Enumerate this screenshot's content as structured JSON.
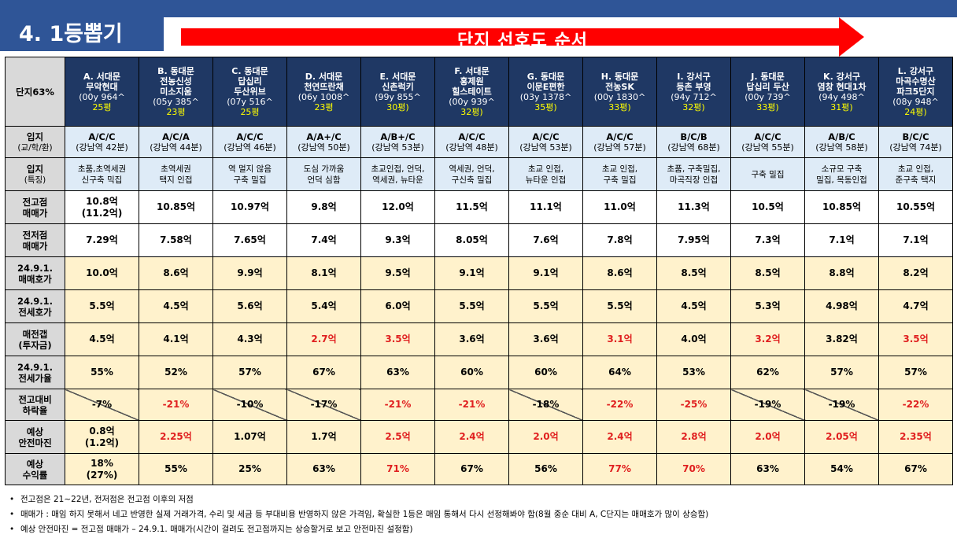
{
  "title": "4. 1등뽑기",
  "banner": "단지 선호도 순서",
  "corner": "단지63%",
  "columns": [
    {
      "name": [
        "A. 서대문",
        "무악현대"
      ],
      "year": "(00y 964^",
      "size": "25평",
      "row": {
        "loc_grade": "A/C/C",
        "loc_dist": "(강남역 42분)",
        "feature": [
          "초품,초역세권",
          "신구축 믹집"
        ],
        "high": [
          "10.8억",
          "(11.2억)"
        ],
        "prev_low": "7.29억",
        "ask": "10.0억",
        "jeonse": "5.5억",
        "gap": "4.5억",
        "ratio": "55%",
        "drop": "-7%",
        "margin": [
          "0.8억",
          "(1.2억)"
        ],
        "yield": [
          "18%",
          "(27%)"
        ]
      }
    },
    {
      "name": [
        "B. 동대문",
        "전농신성",
        "미소지움"
      ],
      "year": "(05y 385^",
      "size": "23평",
      "row": {
        "loc_grade": "A/C/A",
        "loc_dist": "(강남역 44분)",
        "feature": [
          "초역세권",
          "택지 인접"
        ],
        "high": [
          "10.85억"
        ],
        "prev_low": "7.58억",
        "ask": "8.6억",
        "jeonse": "4.5억",
        "gap": "4.1억",
        "ratio": "52%",
        "drop": "-21%",
        "margin": [
          "2.25억"
        ],
        "yield": [
          "55%"
        ]
      }
    },
    {
      "name": [
        "C. 동대문",
        "답십리",
        "두산위브"
      ],
      "year": "(07y 516^",
      "size": "25평",
      "row": {
        "loc_grade": "A/C/C",
        "loc_dist": "(강남역 46분)",
        "feature": [
          "역 멀지 않음",
          "구축 밀집"
        ],
        "high": [
          "10.97억"
        ],
        "prev_low": "7.65억",
        "ask": "9.9억",
        "jeonse": "5.6억",
        "gap": "4.3억",
        "ratio": "57%",
        "drop": "-10%",
        "margin": [
          "1.07억"
        ],
        "yield": [
          "25%"
        ]
      }
    },
    {
      "name": [
        "D. 서대문",
        "천연뜨란채"
      ],
      "year": "(06y 1008^",
      "size": "23평",
      "row": {
        "loc_grade": "A/A+/C",
        "loc_dist": "(강남역 50분)",
        "feature": [
          "도심 가까움",
          "언덕 심함"
        ],
        "high": [
          "9.8억"
        ],
        "prev_low": "7.4억",
        "ask": "8.1억",
        "jeonse": "5.4억",
        "gap": "2.7억",
        "ratio": "67%",
        "drop": "-17%",
        "margin": [
          "1.7억"
        ],
        "yield": [
          "63%"
        ]
      }
    },
    {
      "name": [
        "E. 서대문",
        "신촌럭키"
      ],
      "year": "(99y 855^",
      "size": "30평)",
      "row": {
        "loc_grade": "A/B+/C",
        "loc_dist": "(강남역 53분)",
        "feature": [
          "초교인접, 언덕,",
          "역세권, 뉴타운"
        ],
        "high": [
          "12.0억"
        ],
        "prev_low": "9.3억",
        "ask": "9.5억",
        "jeonse": "6.0억",
        "gap": "3.5억",
        "ratio": "63%",
        "drop": "-21%",
        "margin": [
          "2.5억"
        ],
        "yield": [
          "71%"
        ]
      }
    },
    {
      "name": [
        "F. 서대문",
        "홍제원",
        "힐스테이트"
      ],
      "year": "(00y 939^",
      "size": "32평)",
      "row": {
        "loc_grade": "A/C/C",
        "loc_dist": "(강남역 48분)",
        "feature": [
          "역세권, 언덕,",
          "구신축 밀집"
        ],
        "high": [
          "11.5억"
        ],
        "prev_low": "8.05억",
        "ask": "9.1억",
        "jeonse": "5.5억",
        "gap": "3.6억",
        "ratio": "60%",
        "drop": "-21%",
        "margin": [
          "2.4억"
        ],
        "yield": [
          "67%"
        ]
      }
    },
    {
      "name": [
        "G. 동대문",
        "이문E편한"
      ],
      "year": "(03y 1378^",
      "size": "35평)",
      "row": {
        "loc_grade": "A/C/C",
        "loc_dist": "(강남역 53분)",
        "feature": [
          "초교 인접,",
          "뉴타운 인접"
        ],
        "high": [
          "11.1억"
        ],
        "prev_low": "7.6억",
        "ask": "9.1억",
        "jeonse": "5.5억",
        "gap": "3.6억",
        "ratio": "60%",
        "drop": "-18%",
        "margin": [
          "2.0억"
        ],
        "yield": [
          "56%"
        ]
      }
    },
    {
      "name": [
        "H. 동대문",
        "전농SK"
      ],
      "year": "(00y 1830^",
      "size": "33평)",
      "row": {
        "loc_grade": "A/C/C",
        "loc_dist": "(강남역 57분)",
        "feature": [
          "초교 인접,",
          "구축 밀집"
        ],
        "high": [
          "11.0억"
        ],
        "prev_low": "7.8억",
        "ask": "8.6억",
        "jeonse": "5.5억",
        "gap": "3.1억",
        "ratio": "64%",
        "drop": "-22%",
        "margin": [
          "2.4억"
        ],
        "yield": [
          "77%"
        ]
      }
    },
    {
      "name": [
        "I. 강서구",
        "등촌 부영"
      ],
      "year": "(94y 712^",
      "size": "32평)",
      "row": {
        "loc_grade": "B/C/B",
        "loc_dist": "(강남역 68분)",
        "feature": [
          "초품, 구축밀집,",
          "마곡직장 인접"
        ],
        "high": [
          "11.3억"
        ],
        "prev_low": "7.95억",
        "ask": "8.5억",
        "jeonse": "4.5억",
        "gap": "4.0억",
        "ratio": "53%",
        "drop": "-25%",
        "margin": [
          "2.8억"
        ],
        "yield": [
          "70%"
        ]
      }
    },
    {
      "name": [
        "J. 동대문",
        "답십리 두산"
      ],
      "year": "(00y 739^",
      "size": "33평)",
      "row": {
        "loc_grade": "A/C/C",
        "loc_dist": "(강남역 55분)",
        "feature": [
          "구축 밀집"
        ],
        "high": [
          "10.5억"
        ],
        "prev_low": "7.3억",
        "ask": "8.5억",
        "jeonse": "5.3억",
        "gap": "3.2억",
        "ratio": "62%",
        "drop": "-19%",
        "margin": [
          "2.0억"
        ],
        "yield": [
          "63%"
        ]
      }
    },
    {
      "name": [
        "K. 강서구",
        "염창 현대1차"
      ],
      "year": "(94y 498^",
      "size": "31평)",
      "row": {
        "loc_grade": "A/B/C",
        "loc_dist": "(강남역 58분)",
        "feature": [
          "소규모 구축",
          "밀집, 목동인접"
        ],
        "high": [
          "10.85억"
        ],
        "prev_low": "7.1억",
        "ask": "8.8억",
        "jeonse": "4.98억",
        "gap": "3.82억",
        "ratio": "57%",
        "drop": "-19%",
        "margin": [
          "2.05억"
        ],
        "yield": [
          "54%"
        ]
      }
    },
    {
      "name": [
        "L. 강서구",
        "마곡수명산",
        "파크5단지"
      ],
      "year": "(08y 948^",
      "size": "24평)",
      "row": {
        "loc_grade": "B/C/C",
        "loc_dist": "(강남역 74분)",
        "feature": [
          "초교 인접,",
          "준구축 택지"
        ],
        "high": [
          "10.55억"
        ],
        "prev_low": "7.1억",
        "ask": "8.2억",
        "jeonse": "4.7억",
        "gap": "3.5억",
        "ratio": "57%",
        "drop": "-22%",
        "margin": [
          "2.35억"
        ],
        "yield": [
          "67%"
        ]
      }
    }
  ],
  "row_headers": {
    "loc_grade": [
      "입지",
      "(교/학/환)"
    ],
    "feature": [
      "입지",
      "(특징)"
    ],
    "high": [
      "전고점",
      "매매가"
    ],
    "prev_low": [
      "전저점",
      "매매가"
    ],
    "ask": [
      "24.9.1.",
      "매매호가"
    ],
    "jeonse": [
      "24.9.1.",
      "전세호가"
    ],
    "gap": [
      "매전갭",
      "(투자금)"
    ],
    "ratio": [
      "24.9.1.",
      "전세가율"
    ],
    "drop": [
      "전고대비",
      "하락율"
    ],
    "margin": [
      "예상",
      "안전마진"
    ],
    "yield": [
      "예상",
      "수익률"
    ]
  },
  "notes": [
    "전고점은 21~22년, 전저점은 전고점 이후의 저점",
    "매매가 : 매임 하지 못해서 네고 반영한 실제 거래가격, 수리 및 세금 등 부대비용 반영하지 않은 가격임, 확실한 1등은 매임 통해서 다시 선정해봐야 함(8월 중순 대비 A, C단지는 매매호가 많이 상승함)",
    "예상 안전마진 = 전고점 매매가 – 24.9.1. 매매가(시간이 걸려도 전고점까지는 상승할거로 보고 안전마진 설정함)"
  ],
  "colors": {
    "header_bg": "#1f3864",
    "accent_blue": "#2f5597",
    "banner_red": "#ff0000",
    "highlight_yellow": "#ffff00",
    "alert_red": "#e02020",
    "cream": "#fff2cc",
    "light_blue": "#deebf7"
  },
  "styles": {
    "gap_red": [
      false,
      false,
      false,
      true,
      true,
      false,
      false,
      true,
      false,
      true,
      false,
      true
    ],
    "drop_red": [
      false,
      true,
      false,
      false,
      true,
      true,
      false,
      true,
      true,
      false,
      false,
      true
    ],
    "drop_diag": [
      true,
      false,
      true,
      true,
      false,
      false,
      true,
      false,
      false,
      true,
      true,
      false
    ],
    "margin_red": [
      false,
      true,
      false,
      false,
      true,
      true,
      true,
      true,
      true,
      true,
      true,
      true
    ],
    "yield_red": [
      false,
      false,
      false,
      false,
      true,
      false,
      false,
      true,
      true,
      false,
      false,
      false
    ]
  }
}
